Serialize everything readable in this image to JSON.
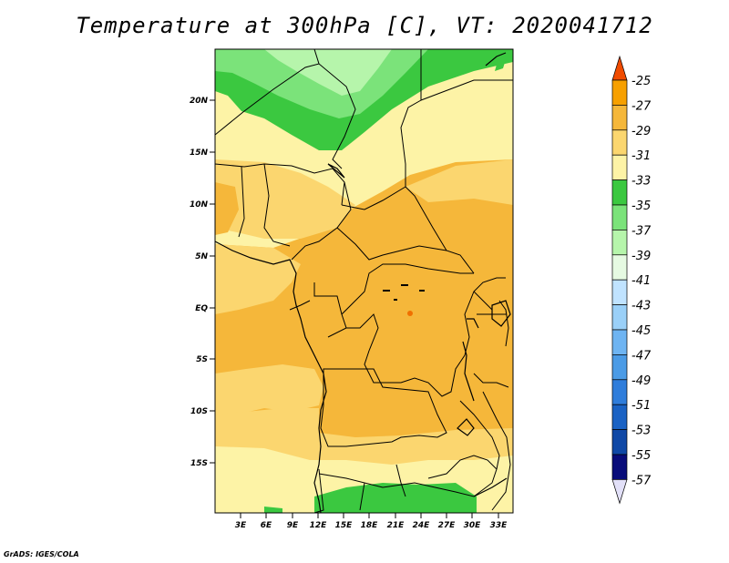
{
  "title": "Temperature at 300hPa [C], VT: 2020041712",
  "credit": "GrADS: IGES/COLA",
  "lat_labels": [
    "20N",
    "15N",
    "10N",
    "5N",
    "EQ",
    "5S",
    "10S",
    "15S"
  ],
  "lon_labels": [
    "3E",
    "6E",
    "9E",
    "12E",
    "15E",
    "18E",
    "21E",
    "24E",
    "27E",
    "30E",
    "33E"
  ],
  "colorbar": {
    "labels": [
      "-25",
      "-27",
      "-29",
      "-31",
      "-33",
      "-35",
      "-37",
      "-39",
      "-41",
      "-43",
      "-45",
      "-47",
      "-49",
      "-51",
      "-53",
      "-55",
      "-57"
    ],
    "colors": [
      "#f04b00",
      "#f7a000",
      "#f5b73a",
      "#fbd66f",
      "#fdf3a6",
      "#3bc840",
      "#7be37a",
      "#b6f5ab",
      "#e6fae2",
      "#c0e3ff",
      "#9ad0f8",
      "#6eb4f2",
      "#4b9be6",
      "#2f7ddb",
      "#1a62c4",
      "#0f48a6",
      "#080c7a",
      "#e2e0f8"
    ]
  },
  "legend_colors": {
    "orange_dark": "#f5b73a",
    "orange_light": "#fbd66f",
    "yellow": "#fdf3a6",
    "green_dark": "#3bc840",
    "green_mid": "#7be37a",
    "green_light": "#b6f5ab"
  }
}
